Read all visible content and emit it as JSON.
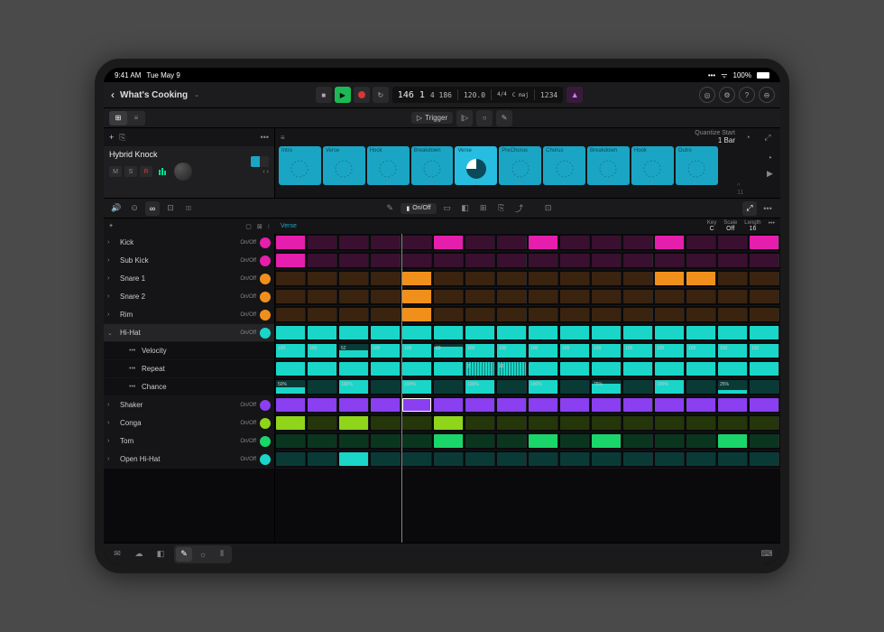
{
  "status": {
    "time": "9:41 AM",
    "date": "Tue May 9",
    "battery": "100%"
  },
  "project": {
    "title": "What's Cooking"
  },
  "transport": {
    "position_bar": "146",
    "position_beat": "1",
    "position_frames": "4 186",
    "tempo": "120.0",
    "sig": "4/4",
    "key": "C maj",
    "extra": "1234"
  },
  "triggerLabel": "Trigger",
  "trackHeader": {
    "name": "Hybrid Knock",
    "btnM": "M",
    "btnS": "S",
    "btnR": "R"
  },
  "quantize": {
    "label": "Quantize Start",
    "value": "1 Bar"
  },
  "cells": [
    {
      "label": "Intro",
      "n": 1
    },
    {
      "label": "Verse",
      "n": 2
    },
    {
      "label": "Hook",
      "n": 3
    },
    {
      "label": "Breakdown",
      "n": 4
    },
    {
      "label": "Verse",
      "n": 5,
      "playing": true
    },
    {
      "label": "PreChorus",
      "n": 6
    },
    {
      "label": "Chorus",
      "n": 7
    },
    {
      "label": "Breakdown",
      "n": 8
    },
    {
      "label": "Hook",
      "n": 9
    },
    {
      "label": "Outro",
      "n": 10
    }
  ],
  "onoffLabel": "On/Off",
  "regionLabel": "Verse",
  "seqParams": {
    "key": {
      "l": "Key",
      "v": "C"
    },
    "scale": {
      "l": "Scale",
      "v": "Off"
    },
    "length": {
      "l": "Length",
      "v": "16"
    }
  },
  "steps": 16,
  "colors": {
    "kick": "#e61ead",
    "subkick": "#e61ead",
    "snare": "#f0901a",
    "rim": "#f0901a",
    "hihat": "#1ad6c8",
    "shaker": "#8a3ff0",
    "conga": "#8fd61a",
    "tom": "#1ad66a",
    "openhh": "#1ad6c8",
    "dimKick": "#3a1030",
    "dimSnare": "#3a2410",
    "dimHat": "#0a3a36",
    "dimShaker": "#241040",
    "dimConga": "#24360a",
    "dimTom": "#0a3620"
  },
  "tracks": [
    {
      "name": "Kick",
      "onoff": "On/Off",
      "iconColor": "#e61ead",
      "chev": ">",
      "dim": "#3a1030",
      "color": "#e61ead",
      "pattern": [
        1,
        0,
        0,
        0,
        0,
        1,
        0,
        0,
        1,
        0,
        0,
        0,
        1,
        0,
        0,
        1
      ]
    },
    {
      "name": "Sub Kick",
      "onoff": "On/Off",
      "iconColor": "#e61ead",
      "chev": ">",
      "dim": "#3a1030",
      "color": "#e61ead",
      "pattern": [
        1,
        0,
        0,
        0,
        0,
        0,
        0,
        0,
        0,
        0,
        0,
        0,
        0,
        0,
        0,
        0
      ]
    },
    {
      "name": "Snare 1",
      "onoff": "On/Off",
      "iconColor": "#f0901a",
      "chev": ">",
      "dim": "#3a2410",
      "color": "#f0901a",
      "pattern": [
        0,
        0,
        0,
        0,
        1,
        0,
        0,
        0,
        0,
        0,
        0,
        0,
        1,
        1,
        0,
        0
      ]
    },
    {
      "name": "Snare 2",
      "onoff": "On/Off",
      "iconColor": "#f0901a",
      "chev": ">",
      "dim": "#3a2410",
      "color": "#f0901a",
      "pattern": [
        0,
        0,
        0,
        0,
        1,
        0,
        0,
        0,
        0,
        0,
        0,
        0,
        0,
        0,
        0,
        0
      ]
    },
    {
      "name": "Rim",
      "onoff": "On/Off",
      "iconColor": "#f0901a",
      "chev": ">",
      "dim": "#3a2410",
      "color": "#f0901a",
      "pattern": [
        0,
        0,
        0,
        0,
        1,
        0,
        0,
        0,
        0,
        0,
        0,
        0,
        0,
        0,
        0,
        0
      ]
    },
    {
      "name": "Hi-Hat",
      "onoff": "On/Off",
      "iconColor": "#1ad6c8",
      "chev": "v",
      "sel": true,
      "dim": "#0a3a36",
      "color": "#1ad6c8",
      "pattern": [
        1,
        1,
        1,
        1,
        1,
        1,
        1,
        1,
        1,
        1,
        1,
        1,
        1,
        1,
        1,
        1
      ],
      "sub": [
        {
          "name": "Velocity",
          "vals": [
            "100",
            "100",
            "52",
            "100",
            "100",
            "83",
            "100",
            "100",
            "100",
            "100",
            "100",
            "100",
            "100",
            "100",
            "100",
            "100"
          ],
          "heights": [
            100,
            100,
            52,
            100,
            100,
            83,
            100,
            100,
            100,
            100,
            100,
            100,
            100,
            100,
            100,
            100
          ],
          "dim": "#0a3a36",
          "color": "#1ad6c8"
        },
        {
          "name": "Repeat",
          "vals": [
            "",
            "",
            "",
            "",
            "",
            "",
            "3",
            "16",
            "",
            "",
            "",
            "",
            "",
            "",
            "",
            ""
          ],
          "dim": "#0a3a36",
          "color": "#1ad6c8",
          "rep": [
            0,
            0,
            0,
            0,
            0,
            0,
            1,
            1,
            0,
            0,
            0,
            0,
            0,
            0,
            0,
            0
          ]
        },
        {
          "name": "Chance",
          "vals": [
            "50%",
            "",
            "100%",
            "",
            "100%",
            "",
            "100%",
            "",
            "100%",
            "",
            "75%",
            "",
            "100%",
            "",
            "25%",
            ""
          ],
          "dim": "#0a3a36",
          "color": "#1ad6c8",
          "heights": [
            50,
            0,
            100,
            0,
            100,
            0,
            100,
            0,
            100,
            0,
            75,
            0,
            100,
            0,
            25,
            0
          ]
        }
      ]
    },
    {
      "name": "Shaker",
      "onoff": "On/Off",
      "iconColor": "#8a3ff0",
      "chev": ">",
      "dim": "#241040",
      "color": "#8a3ff0",
      "pattern": [
        1,
        1,
        1,
        1,
        1,
        1,
        1,
        1,
        1,
        1,
        1,
        1,
        1,
        1,
        1,
        1
      ],
      "highlight": 4
    },
    {
      "name": "Conga",
      "onoff": "On/Off",
      "iconColor": "#8fd61a",
      "chev": ">",
      "dim": "#24360a",
      "color": "#8fd61a",
      "pattern": [
        1,
        0,
        1,
        0,
        0,
        1,
        0,
        0,
        0,
        0,
        0,
        0,
        0,
        0,
        0,
        0
      ]
    },
    {
      "name": "Tom",
      "onoff": "On/Off",
      "iconColor": "#1ad66a",
      "chev": ">",
      "dim": "#0a3620",
      "color": "#1ad66a",
      "pattern": [
        0,
        0,
        0,
        0,
        0,
        1,
        0,
        0,
        1,
        0,
        1,
        0,
        0,
        0,
        1,
        0
      ]
    },
    {
      "name": "Open Hi-Hat",
      "onoff": "On/Off",
      "iconColor": "#1ad6c8",
      "chev": ">",
      "dim": "#0a3a36",
      "color": "#1ad6c8",
      "pattern": [
        0,
        0,
        1,
        0,
        0,
        0,
        0,
        0,
        0,
        0,
        0,
        0,
        0,
        0,
        0,
        0
      ]
    }
  ]
}
